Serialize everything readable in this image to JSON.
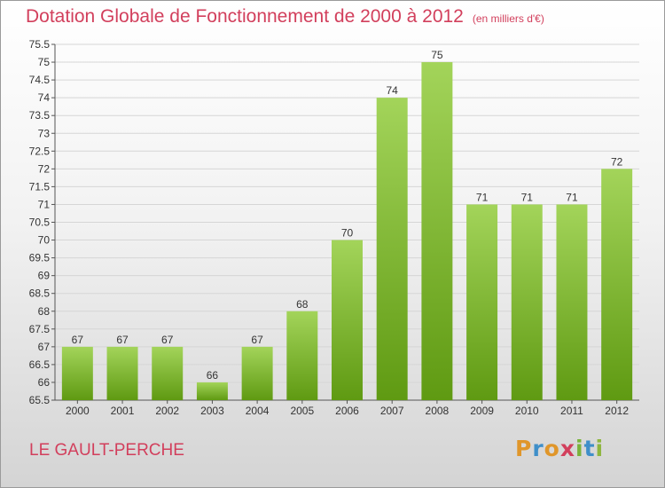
{
  "header": {
    "title": "Dotation Globale de Fonctionnement de 2000 à 2012",
    "unit": "(en milliers d'€)"
  },
  "footer": {
    "commune": "LE GAULT-PERCHE",
    "brand": [
      "P",
      "r",
      "o",
      "x",
      "i",
      "t",
      "i"
    ]
  },
  "colors": {
    "accent_text": "#d23f5c",
    "bar_top": "#a3d45a",
    "bar_bottom": "#5f9a12"
  },
  "chart_data": {
    "type": "bar",
    "title": "Dotation Globale de Fonctionnement de 2000 à 2012",
    "subtitle": "(en milliers d'€)",
    "xlabel": "",
    "ylabel": "",
    "categories": [
      "2000",
      "2001",
      "2002",
      "2003",
      "2004",
      "2005",
      "2006",
      "2007",
      "2008",
      "2009",
      "2010",
      "2011",
      "2012"
    ],
    "values": [
      67,
      67,
      67,
      66,
      67,
      68,
      70,
      74,
      75,
      71,
      71,
      71,
      72
    ],
    "ylim": [
      65.5,
      75.5
    ],
    "yticks": [
      65.5,
      66,
      66.5,
      67,
      67.5,
      68,
      68.5,
      69,
      69.5,
      70,
      70.5,
      71,
      71.5,
      72,
      72.5,
      73,
      73.5,
      74,
      74.5,
      75,
      75.5
    ],
    "grid": true,
    "legend": "none"
  }
}
